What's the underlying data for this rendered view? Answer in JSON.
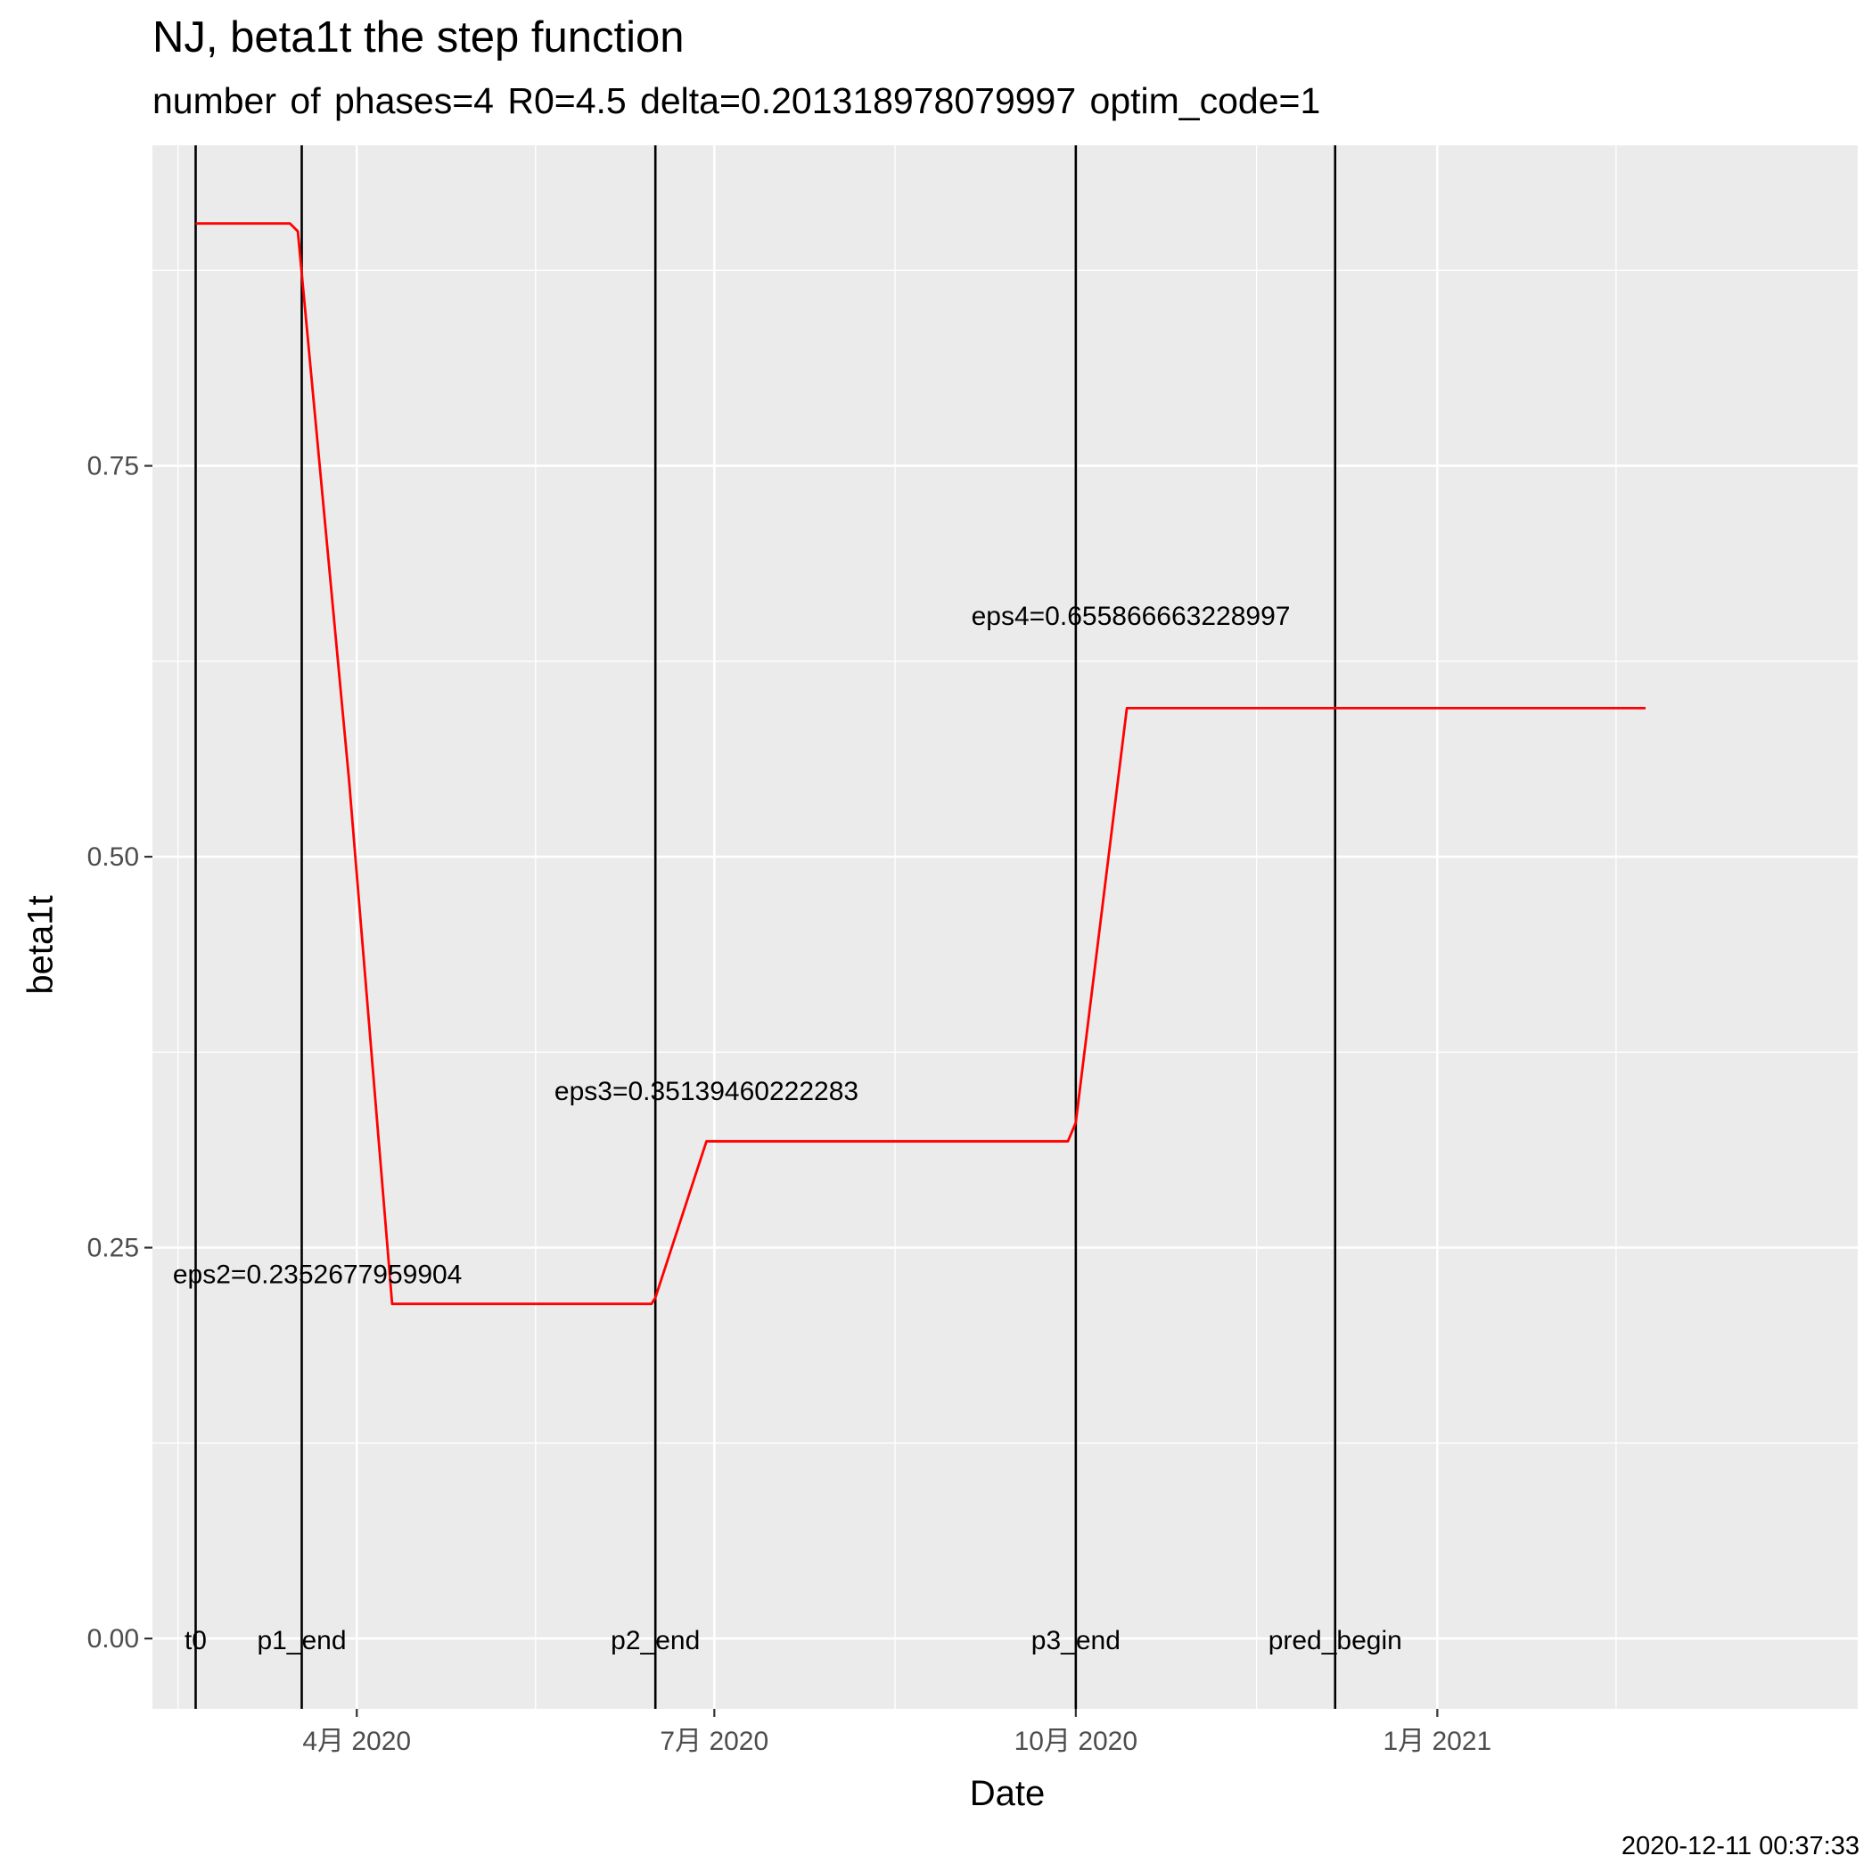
{
  "chart_data": {
    "type": "line",
    "title": "NJ, beta1t the step function",
    "subtitle": "number of phases=4   R0=4.5   delta=0.201318978079997   optim_code=1",
    "xlabel": "Date",
    "ylabel": "beta1t",
    "caption": "2020-12-11 00:37:33",
    "xlim": [
      "2020-02-09",
      "2021-04-18"
    ],
    "ylim": [
      -0.045,
      0.955
    ],
    "yticks": [
      0.0,
      0.25,
      0.5,
      0.75
    ],
    "ytick_labels": [
      "0.00",
      "0.25",
      "0.50",
      "0.75"
    ],
    "xticks": [
      "2020-04-01",
      "2020-07-01",
      "2020-10-01",
      "2021-01-01"
    ],
    "xtick_labels": [
      "4月 2020",
      "7月 2020",
      "10月 2020",
      "1月 2021"
    ],
    "grid": true,
    "series": [
      {
        "color": "#ff0000",
        "x": [
          "2020-02-20",
          "2020-03-15",
          "2020-03-17",
          "2020-03-30",
          "2020-04-10",
          "2020-05-20",
          "2020-06-15",
          "2020-06-16",
          "2020-06-29",
          "2020-08-15",
          "2020-09-29",
          "2020-10-01",
          "2020-10-14",
          "2020-11-30",
          "2021-01-15",
          "2021-02-23"
        ],
        "y": [
          0.905,
          0.905,
          0.9,
          0.55,
          0.214,
          0.214,
          0.214,
          0.218,
          0.318,
          0.318,
          0.318,
          0.33,
          0.595,
          0.595,
          0.595,
          0.595
        ]
      }
    ],
    "vlines": [
      {
        "label": "t0",
        "x": "2020-02-20"
      },
      {
        "label": "p1_end",
        "x": "2020-03-18"
      },
      {
        "label": "p2_end",
        "x": "2020-06-16"
      },
      {
        "label": "p3_end",
        "x": "2020-10-01"
      },
      {
        "label": "pred_begin",
        "x": "2020-12-06"
      }
    ],
    "annotations": [
      {
        "text": "eps2=0.2352677959904",
        "x": "2020-03-22",
        "y": 0.233
      },
      {
        "text": "eps3=0.35139460222283",
        "x": "2020-06-29",
        "y": 0.35
      },
      {
        "text": "eps4=0.655866663228997",
        "x": "2020-10-15",
        "y": 0.654
      }
    ]
  }
}
